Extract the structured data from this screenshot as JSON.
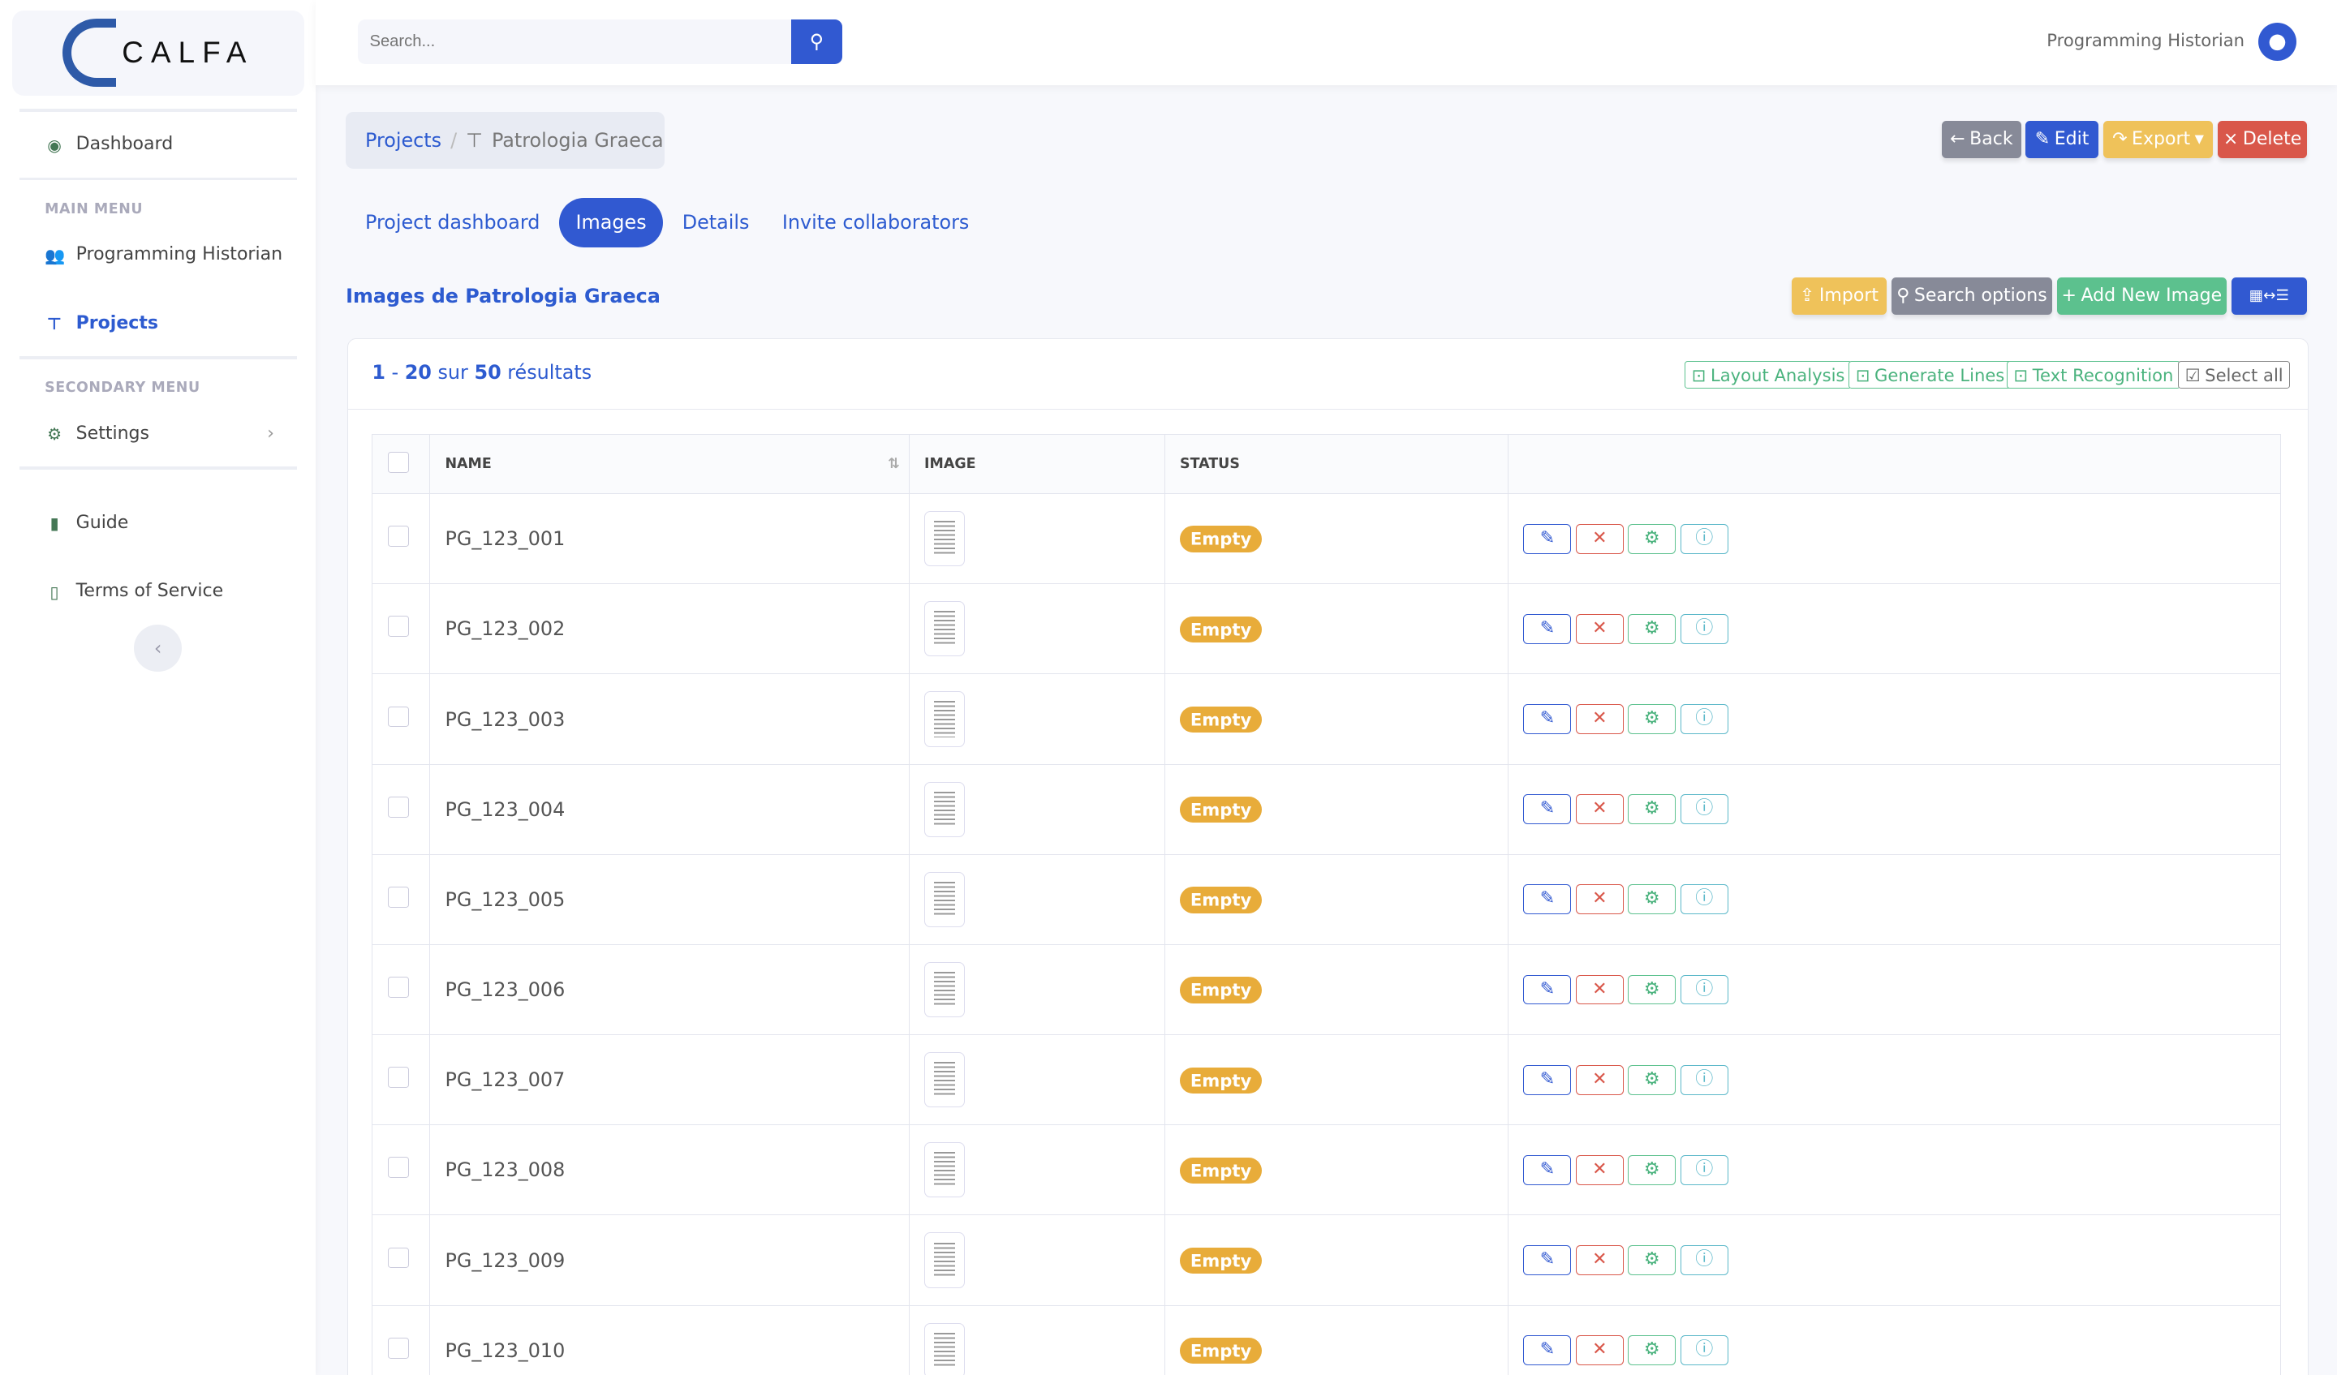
{
  "brand": {
    "name": "CALFA"
  },
  "sidebar": {
    "dashboard": "Dashboard",
    "main_menu": "MAIN MENU",
    "programming_historian": "Programming Historian",
    "projects": "Projects",
    "secondary_menu": "SECONDARY MENU",
    "settings": "Settings",
    "guide": "Guide",
    "terms": "Terms of Service"
  },
  "topbar": {
    "search_placeholder": "Search...",
    "user": "Programming Historian"
  },
  "breadcrumb": {
    "root": "Projects",
    "sep": "/",
    "current": "Patrologia Graeca"
  },
  "actions": {
    "back": "Back",
    "edit": "Edit",
    "export": "Export",
    "delete": "Delete"
  },
  "tabs": [
    "Project dashboard",
    "Images",
    "Details",
    "Invite collaborators"
  ],
  "section": {
    "title": "Images de Patrologia Graeca",
    "import": "Import",
    "search_options": "Search options",
    "add_new": "Add New Image"
  },
  "results": {
    "from": "1",
    "to": "20",
    "sur": "sur",
    "total": "50",
    "label": "résultats"
  },
  "bulk": {
    "layout": "Layout Analysis",
    "lines": "Generate Lines",
    "text": "Text Recognition",
    "select_all": "Select all"
  },
  "table": {
    "headers": [
      "NAME",
      "IMAGE",
      "STATUS"
    ],
    "rows": [
      {
        "name": "PG_123_001",
        "status": "Empty"
      },
      {
        "name": "PG_123_002",
        "status": "Empty"
      },
      {
        "name": "PG_123_003",
        "status": "Empty"
      },
      {
        "name": "PG_123_004",
        "status": "Empty"
      },
      {
        "name": "PG_123_005",
        "status": "Empty"
      },
      {
        "name": "PG_123_006",
        "status": "Empty"
      },
      {
        "name": "PG_123_007",
        "status": "Empty"
      },
      {
        "name": "PG_123_008",
        "status": "Empty"
      },
      {
        "name": "PG_123_009",
        "status": "Empty"
      },
      {
        "name": "PG_123_010",
        "status": "Empty"
      }
    ]
  },
  "colors": {
    "primary": "#3159d1",
    "warning": "#efc25a",
    "secondary": "#878a98",
    "success": "#5cc18e",
    "danger": "#d9574a",
    "badge": "#e8ac3a",
    "info": "#5bb8c9"
  }
}
